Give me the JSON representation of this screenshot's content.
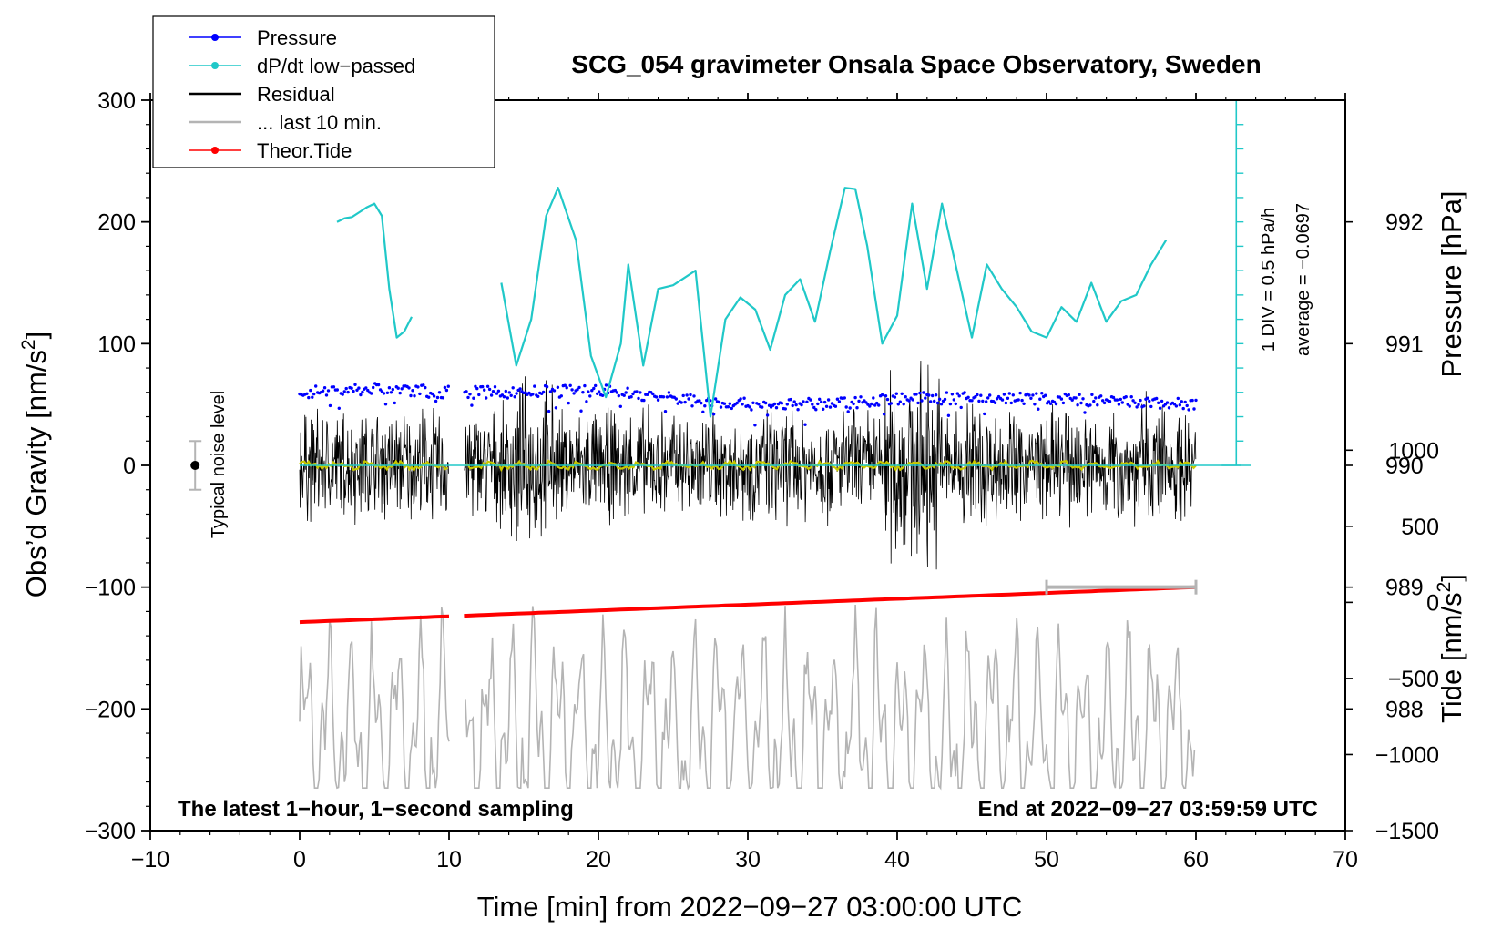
{
  "chart_data": {
    "type": "line",
    "title": "SCG_054 gravimeter Onsala Space Observatory, Sweden",
    "xlabel": "Time [min] from 2022−09−27 03:00:00 UTC",
    "ylabel_left": "Obs’d Gravity [nm/s",
    "ylabel_left_sup": "2",
    "ylabel_left_close": "]",
    "ylabel_right_pressure": "Pressure [hPa]",
    "ylabel_right_tide": "Tide [nm/s",
    "ylabel_right_tide_sup": "2",
    "ylabel_right_tide_close": "]",
    "xlim": [
      -10,
      70
    ],
    "ylim": [
      -300,
      300
    ],
    "pressure_lim": [
      987,
      993
    ],
    "tide_lim": [
      -1500,
      3300
    ],
    "x_ticks": [
      -10,
      0,
      10,
      20,
      30,
      40,
      50,
      60,
      70
    ],
    "x_tick_labels": [
      "−10",
      "0",
      "10",
      "20",
      "30",
      "40",
      "50",
      "60",
      "70"
    ],
    "y_ticks": [
      300,
      200,
      100,
      0,
      -100,
      -200,
      -300
    ],
    "y_tick_labels": [
      "300",
      "200",
      "100",
      "0",
      "−100",
      "−200",
      "−300"
    ],
    "pressure_ticks": [
      992,
      991,
      990,
      989,
      988
    ],
    "pressure_tick_labels": [
      "992",
      "991",
      "990",
      "989",
      "988"
    ],
    "tide_ticks": [
      1000,
      500,
      0,
      -500,
      -1000,
      -1500
    ],
    "tide_tick_labels": [
      "1000",
      "500",
      "0",
      "−500",
      "−1000",
      "−1500"
    ],
    "legend": [
      {
        "label": "Pressure",
        "color": "#0000ff",
        "marker": true
      },
      {
        "label": "dP/dt low−passed",
        "color": "#20c8c8",
        "marker": true
      },
      {
        "label": "Residual",
        "color": "#000000",
        "marker": false
      },
      {
        "label": "... last 10 min.",
        "color": "#b4b4b4",
        "marker": false
      },
      {
        "label": "Theor.Tide",
        "color": "#ff0000",
        "marker": true
      }
    ],
    "legend_position": "top-left",
    "annotations": {
      "bottom_left": "The latest 1−hour, 1−second sampling",
      "bottom_right": "End at 2022−09−27 03:59:59 UTC",
      "noise_label": "Typical noise level",
      "dpdt_scale": "1 DIV = 0.5 hPa/h",
      "dpdt_average": "average = −0.0697"
    },
    "dpdt_baseline_hpa": 990,
    "noise_level_nm_s2": 20,
    "last10_bar_minutes": [
      50,
      60
    ],
    "series": [
      {
        "name": "Pressure",
        "color": "#0000ff",
        "x": [
          0,
          5,
          10,
          15,
          20,
          25,
          30,
          35,
          40,
          45,
          50,
          55,
          60
        ],
        "values": [
          990.6,
          990.63,
          990.6,
          990.6,
          990.62,
          990.55,
          990.5,
          990.5,
          990.55,
          990.55,
          990.55,
          990.52,
          990.5
        ]
      },
      {
        "name": "dP/dt low-passed",
        "color": "#20c8c8",
        "x": [
          2.5,
          3,
          3.5,
          4,
          4.5,
          5,
          5.5,
          6,
          6.5,
          7,
          7.5,
          13.5,
          14.5,
          15.5,
          16.5,
          17.3,
          18.5,
          19.5,
          20.5,
          21.5,
          22,
          23,
          24,
          25,
          26.5,
          27.5,
          28.5,
          29.5,
          30.5,
          31.5,
          32.5,
          33.5,
          34.5,
          35.5,
          36.5,
          37.2,
          38,
          39,
          40,
          41,
          42,
          43,
          44,
          45,
          46,
          47,
          48,
          49,
          50,
          51,
          52,
          53,
          54,
          55,
          56,
          57,
          58
        ],
        "values": [
          200,
          203,
          204,
          208,
          212,
          215,
          205,
          145,
          105,
          110,
          122,
          150,
          82,
          120,
          205,
          228,
          185,
          90,
          56,
          100,
          165,
          82,
          145,
          148,
          160,
          40,
          120,
          138,
          128,
          95,
          140,
          153,
          118,
          175,
          228,
          227,
          180,
          100,
          123,
          215,
          145,
          215,
          160,
          105,
          165,
          145,
          130,
          110,
          105,
          130,
          118,
          150,
          118,
          135,
          140,
          165,
          185
        ]
      },
      {
        "name": "Theor.Tide",
        "color": "#ff0000",
        "x": [
          0,
          60
        ],
        "values": [
          -130,
          100
        ]
      }
    ]
  }
}
